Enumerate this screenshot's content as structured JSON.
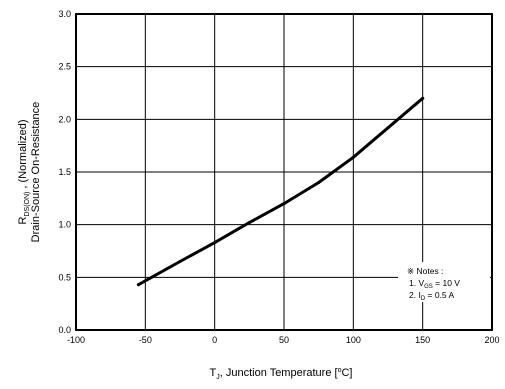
{
  "chart_data": {
    "type": "line",
    "title": "",
    "xlabel": {
      "symbol": "T",
      "sub": "J",
      "text": ", Junction Temperature [",
      "unit_sup": "o",
      "unit_tail": "C]"
    },
    "ylabel": {
      "line1_symbol": "R",
      "line1_sub": "DS(ON)",
      "line1_text": " , (Normalized)",
      "line2": "Drain-Source On-Resistance"
    },
    "xlim": [
      -100,
      200
    ],
    "ylim": [
      0.0,
      3.0
    ],
    "xticks": [
      "-100",
      "-50",
      "0",
      "50",
      "100",
      "150",
      "200"
    ],
    "yticks": [
      "0.0",
      "0.5",
      "1.0",
      "1.5",
      "2.0",
      "2.5",
      "3.0"
    ],
    "grid": true,
    "series": [
      {
        "x": [
          -55,
          -25,
          0,
          25,
          50,
          75,
          100,
          125,
          150
        ],
        "y": [
          0.43,
          0.65,
          0.83,
          1.02,
          1.2,
          1.4,
          1.64,
          1.92,
          2.2
        ]
      }
    ],
    "annotation": {
      "header": "※ Notes :",
      "line1_prefix": "1. V",
      "line1_sub": "GS",
      "line1_tail": " = 10 V",
      "line2_prefix": "2. I",
      "line2_sub": "D",
      "line2_tail": " = 0.5 A"
    }
  }
}
